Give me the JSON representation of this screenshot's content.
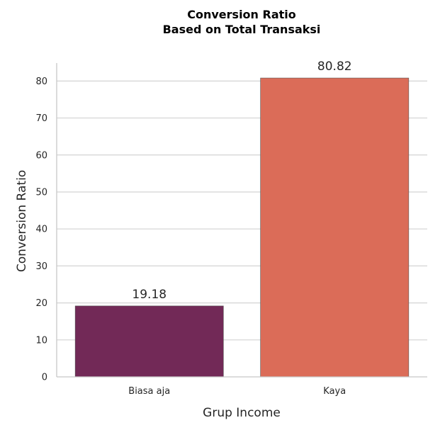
{
  "chart_data": {
    "type": "bar",
    "title": "Conversion Ratio",
    "subtitle": "Based on Total Transaksi",
    "xlabel": "Grup Income",
    "ylabel": "Conversion Ratio",
    "categories": [
      "Biasa aja",
      "Kaya"
    ],
    "values": [
      19.18,
      80.82
    ],
    "data_labels": [
      "19.18",
      "80.82"
    ],
    "bar_colors": [
      "#722957",
      "#DB6C58"
    ],
    "yticks": [
      0,
      10,
      20,
      30,
      40,
      50,
      60,
      70,
      80
    ],
    "ylim": [
      0,
      84.86
    ],
    "grid": "horizontal",
    "legend": "none"
  }
}
